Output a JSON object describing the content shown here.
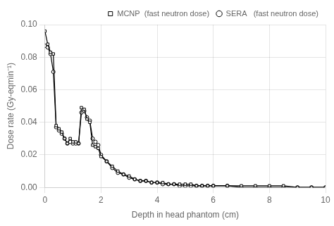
{
  "chart_data": {
    "type": "line",
    "x_label": "Depth in head phantom (cm)",
    "y_label": "Dose rate (Gy-eqmin⁻¹)",
    "x": [
      0.0,
      0.1,
      0.2,
      0.3,
      0.4,
      0.5,
      0.6,
      0.7,
      0.8,
      0.9,
      1.0,
      1.1,
      1.2,
      1.3,
      1.4,
      1.5,
      1.6,
      1.7,
      1.8,
      1.9,
      2.0,
      2.2,
      2.4,
      2.6,
      2.8,
      3.0,
      3.2,
      3.4,
      3.6,
      3.8,
      4.0,
      4.2,
      4.4,
      4.6,
      4.8,
      5.0,
      5.2,
      5.4,
      5.6,
      5.8,
      6.0,
      6.5,
      7.0,
      7.5,
      8.0,
      8.5,
      9.0,
      9.5,
      10.0
    ],
    "series": [
      {
        "name": "MCNP  (fast neutron dose)",
        "color": "#000000",
        "marker": "square",
        "values": [
          0.096,
          0.088,
          0.083,
          0.082,
          0.038,
          0.036,
          0.034,
          0.03,
          0.027,
          0.03,
          0.028,
          0.028,
          0.027,
          0.049,
          0.048,
          0.042,
          0.04,
          0.026,
          0.025,
          0.024,
          0.019,
          0.016,
          0.013,
          0.01,
          0.008,
          0.007,
          0.005,
          0.004,
          0.004,
          0.003,
          0.003,
          0.003,
          0.002,
          0.002,
          0.002,
          0.002,
          0.002,
          0.001,
          0.001,
          0.001,
          0.001,
          0.001,
          0.001,
          0.001,
          0.001,
          0.001,
          0.0,
          0.0,
          0.0
        ]
      },
      {
        "name": "SERA   (fast neutron dose)",
        "color": "#000000",
        "marker": "circle",
        "values": [
          0.087,
          0.086,
          0.082,
          0.071,
          0.037,
          0.035,
          0.033,
          0.03,
          0.027,
          0.028,
          0.027,
          0.027,
          0.027,
          0.046,
          0.047,
          0.043,
          0.041,
          0.03,
          0.028,
          0.026,
          0.02,
          0.016,
          0.012,
          0.009,
          0.008,
          0.006,
          0.005,
          0.004,
          0.004,
          0.003,
          0.003,
          0.002,
          0.002,
          0.002,
          0.001,
          0.001,
          0.001,
          0.001,
          0.001,
          0.001,
          0.001,
          0.001,
          0.0,
          0.0,
          0.0,
          0.0,
          0.0,
          0.0,
          0.0
        ]
      }
    ],
    "xlim": [
      0,
      10
    ],
    "ylim": [
      0,
      0.1
    ],
    "xticks": [
      0,
      2,
      4,
      6,
      8,
      10
    ],
    "yticks": [
      {
        "value": 0,
        "label": "0.00"
      },
      0.02,
      0.04,
      0.06,
      0.08,
      {
        "value": 0.1,
        "label": "0.10"
      }
    ],
    "grid": true,
    "legend": "upper right"
  }
}
